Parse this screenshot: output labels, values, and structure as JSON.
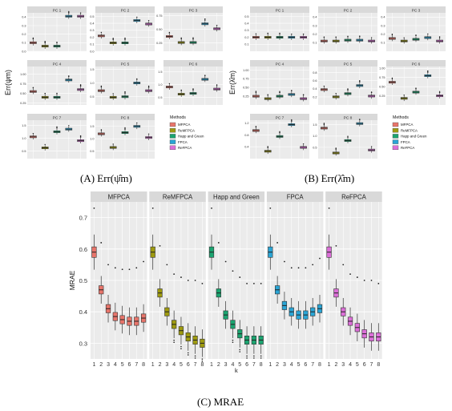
{
  "captions": {
    "a": "(A) Err(ψ̂m)",
    "b": "(B) Err(λ̂m)",
    "c": "(C) MRAE"
  },
  "colors": {
    "MFPCA": "#E8756B",
    "ReMFPCA": "#9E9A10",
    "Happ and Green": "#1BA470",
    "FPCA": "#2AA5D5",
    "ReFPCA": "#DC6FD8"
  },
  "chart_data": [
    {
      "type": "boxplot",
      "id": "a",
      "ylabel": "Err(ψm)",
      "legend_title": "Methods",
      "legend": [
        "MFPCA",
        "ReMFPCA",
        "Happ and Green",
        "FPCA",
        "ReFPCA"
      ],
      "legend_position": "right",
      "panels": [
        {
          "title": "PC 1",
          "ylim": [
            0,
            0.45
          ],
          "ticks": [
            0,
            0.1,
            0.2,
            0.3,
            0.4
          ],
          "tick_labels": [
            "0.0",
            "0.1",
            "0.2",
            "0.3",
            "0.4"
          ],
          "medians": [
            0.1,
            0.06,
            0.06,
            0.41,
            0.41
          ]
        },
        {
          "title": "PC 2",
          "ylim": [
            0,
            0.55
          ],
          "ticks": [
            0,
            0.1,
            0.2,
            0.3,
            0.4,
            0.5
          ],
          "tick_labels": [
            "0.0",
            "0.1",
            "0.2",
            "0.3",
            "0.4",
            "0.5"
          ],
          "medians": [
            0.22,
            0.12,
            0.12,
            0.44,
            0.39
          ]
        },
        {
          "title": "PC 3",
          "ylim": [
            0.1,
            0.8
          ],
          "ticks": [
            0.25,
            0.5,
            0.75
          ],
          "tick_labels": [
            "0.25",
            "0.50",
            "0.75"
          ],
          "medians": [
            0.37,
            0.26,
            0.26,
            0.6,
            0.51
          ]
        },
        {
          "title": "PC 4",
          "ylim": [
            0.2,
            1.2
          ],
          "ticks": [
            0.25,
            0.5,
            0.75,
            1.0
          ],
          "tick_labels": [
            "0.25",
            "0.50",
            "0.75",
            "1.00"
          ],
          "medians": [
            0.55,
            0.4,
            0.4,
            0.85,
            0.6
          ]
        },
        {
          "title": "PC 5",
          "ylim": [
            0.2,
            1.6
          ],
          "ticks": [
            0.5,
            1.0,
            1.5
          ],
          "tick_labels": [
            "0.5",
            "1.0",
            "1.5"
          ],
          "medians": [
            0.72,
            0.48,
            0.5,
            1.0,
            0.72
          ]
        },
        {
          "title": "PC 6",
          "ylim": [
            0.2,
            1.7
          ],
          "ticks": [
            0.5,
            1.0,
            1.5
          ],
          "tick_labels": [
            "0.5",
            "1.0",
            "1.5"
          ],
          "medians": [
            0.9,
            0.62,
            0.65,
            1.2,
            0.82
          ]
        },
        {
          "title": "PC 7",
          "ylim": [
            0.2,
            1.7
          ],
          "ticks": [
            0.5,
            1.0,
            1.5
          ],
          "tick_labels": [
            "0.5",
            "1.0",
            "1.5"
          ],
          "medians": [
            1.05,
            0.62,
            1.25,
            1.35,
            0.9
          ]
        },
        {
          "title": "PC 8",
          "ylim": [
            0.2,
            1.75
          ],
          "ticks": [
            0.5,
            1.0,
            1.5
          ],
          "tick_labels": [
            "0.5",
            "1.0",
            "1.5"
          ],
          "medians": [
            1.2,
            0.65,
            1.25,
            1.5,
            1.05
          ]
        }
      ]
    },
    {
      "type": "boxplot",
      "id": "b",
      "ylabel": "Err(λ̂m)",
      "legend_title": "Methods",
      "legend": [
        "MFPCA",
        "ReMFPCA",
        "Happ and Green",
        "FPCA",
        "ReFPCA"
      ],
      "legend_position": "right",
      "panels": [
        {
          "title": "PC 1",
          "ylim": [
            0,
            0.55
          ],
          "ticks": [
            0.1,
            0.2,
            0.3,
            0.4,
            0.5
          ],
          "tick_labels": [
            "0.1",
            "0.2",
            "0.3",
            "0.4",
            "0.5"
          ],
          "medians": [
            0.2,
            0.2,
            0.2,
            0.2,
            0.2
          ]
        },
        {
          "title": "PC 2",
          "ylim": [
            0,
            0.45
          ],
          "ticks": [
            0.1,
            0.2,
            0.3,
            0.4
          ],
          "tick_labels": [
            "0.1",
            "0.2",
            "0.3",
            "0.4"
          ],
          "medians": [
            0.12,
            0.12,
            0.13,
            0.13,
            0.12
          ]
        },
        {
          "title": "PC 3",
          "ylim": [
            0,
            0.45
          ],
          "ticks": [
            0.1,
            0.2,
            0.3,
            0.4
          ],
          "tick_labels": [
            "0.1",
            "0.2",
            "0.3",
            "0.4"
          ],
          "medians": [
            0.15,
            0.12,
            0.14,
            0.16,
            0.12
          ]
        },
        {
          "title": "PC 4",
          "ylim": [
            0,
            1.1
          ],
          "ticks": [
            0.25,
            0.5,
            0.75,
            1.0
          ],
          "tick_labels": [
            "0.25",
            "0.50",
            "0.75",
            "1.00"
          ],
          "medians": [
            0.25,
            0.18,
            0.25,
            0.3,
            0.18
          ]
        },
        {
          "title": "PC 5",
          "ylim": [
            0,
            0.95
          ],
          "ticks": [
            0.2,
            0.4,
            0.6,
            0.8
          ],
          "tick_labels": [
            "0.2",
            "0.4",
            "0.6",
            "0.8"
          ],
          "medians": [
            0.38,
            0.2,
            0.28,
            0.48,
            0.22
          ]
        },
        {
          "title": "PC 6",
          "ylim": [
            0,
            1.05
          ],
          "ticks": [
            0.25,
            0.5,
            0.75,
            1.0
          ],
          "tick_labels": [
            "0.25",
            "0.50",
            "0.75",
            "1.00"
          ],
          "medians": [
            0.62,
            0.18,
            0.35,
            0.8,
            0.25
          ]
        },
        {
          "title": "PC 7",
          "ylim": [
            0,
            1.3
          ],
          "ticks": [
            0.4,
            0.8,
            1.2
          ],
          "tick_labels": [
            "0.4",
            "0.8",
            "1.2"
          ],
          "medians": [
            0.95,
            0.25,
            0.75,
            1.15,
            0.38
          ]
        },
        {
          "title": "PC 8",
          "ylim": [
            0,
            1.7
          ],
          "ticks": [
            0.5,
            1.0,
            1.5
          ],
          "tick_labels": [
            "0.5",
            "1.0",
            "1.5"
          ],
          "medians": [
            1.35,
            0.25,
            0.8,
            1.55,
            0.38
          ]
        }
      ]
    },
    {
      "type": "boxplot",
      "id": "c",
      "xlabel": "k",
      "ylabel": "MRAE",
      "ylim": [
        0.25,
        0.75
      ],
      "ticks": [
        0.3,
        0.4,
        0.5,
        0.6,
        0.7
      ],
      "tick_labels": [
        "0.3",
        "0.4",
        "0.5",
        "0.6",
        "0.7"
      ],
      "x": [
        "1",
        "2",
        "3",
        "4",
        "5",
        "6",
        "7",
        "8"
      ],
      "panels": [
        {
          "title": "MFPCA",
          "medians": [
            0.59,
            0.47,
            0.41,
            0.385,
            0.375,
            0.37,
            0.37,
            0.38
          ],
          "outlier_top": [
            0.73,
            0.62,
            0.55,
            0.54,
            0.535,
            0.535,
            0.54,
            0.56
          ]
        },
        {
          "title": "ReMFPCA",
          "medians": [
            0.59,
            0.46,
            0.4,
            0.36,
            0.34,
            0.32,
            0.31,
            0.3
          ],
          "outlier_top": [
            0.73,
            0.61,
            0.55,
            0.52,
            0.51,
            0.5,
            0.5,
            0.49
          ]
        },
        {
          "title": "Happ and Green",
          "medians": [
            0.59,
            0.46,
            0.39,
            0.36,
            0.33,
            0.31,
            0.31,
            0.31
          ],
          "outlier_top": [
            0.73,
            0.62,
            0.56,
            0.53,
            0.51,
            0.49,
            0.49,
            0.49
          ]
        },
        {
          "title": "FPCA",
          "medians": [
            0.59,
            0.47,
            0.42,
            0.4,
            0.39,
            0.39,
            0.4,
            0.41
          ],
          "outlier_top": [
            0.73,
            0.62,
            0.56,
            0.54,
            0.54,
            0.54,
            0.55,
            0.57
          ]
        },
        {
          "title": "ReFPCA",
          "medians": [
            0.59,
            0.46,
            0.4,
            0.37,
            0.35,
            0.33,
            0.32,
            0.32
          ],
          "outlier_top": [
            0.73,
            0.61,
            0.55,
            0.52,
            0.51,
            0.5,
            0.5,
            0.49
          ]
        }
      ]
    }
  ]
}
